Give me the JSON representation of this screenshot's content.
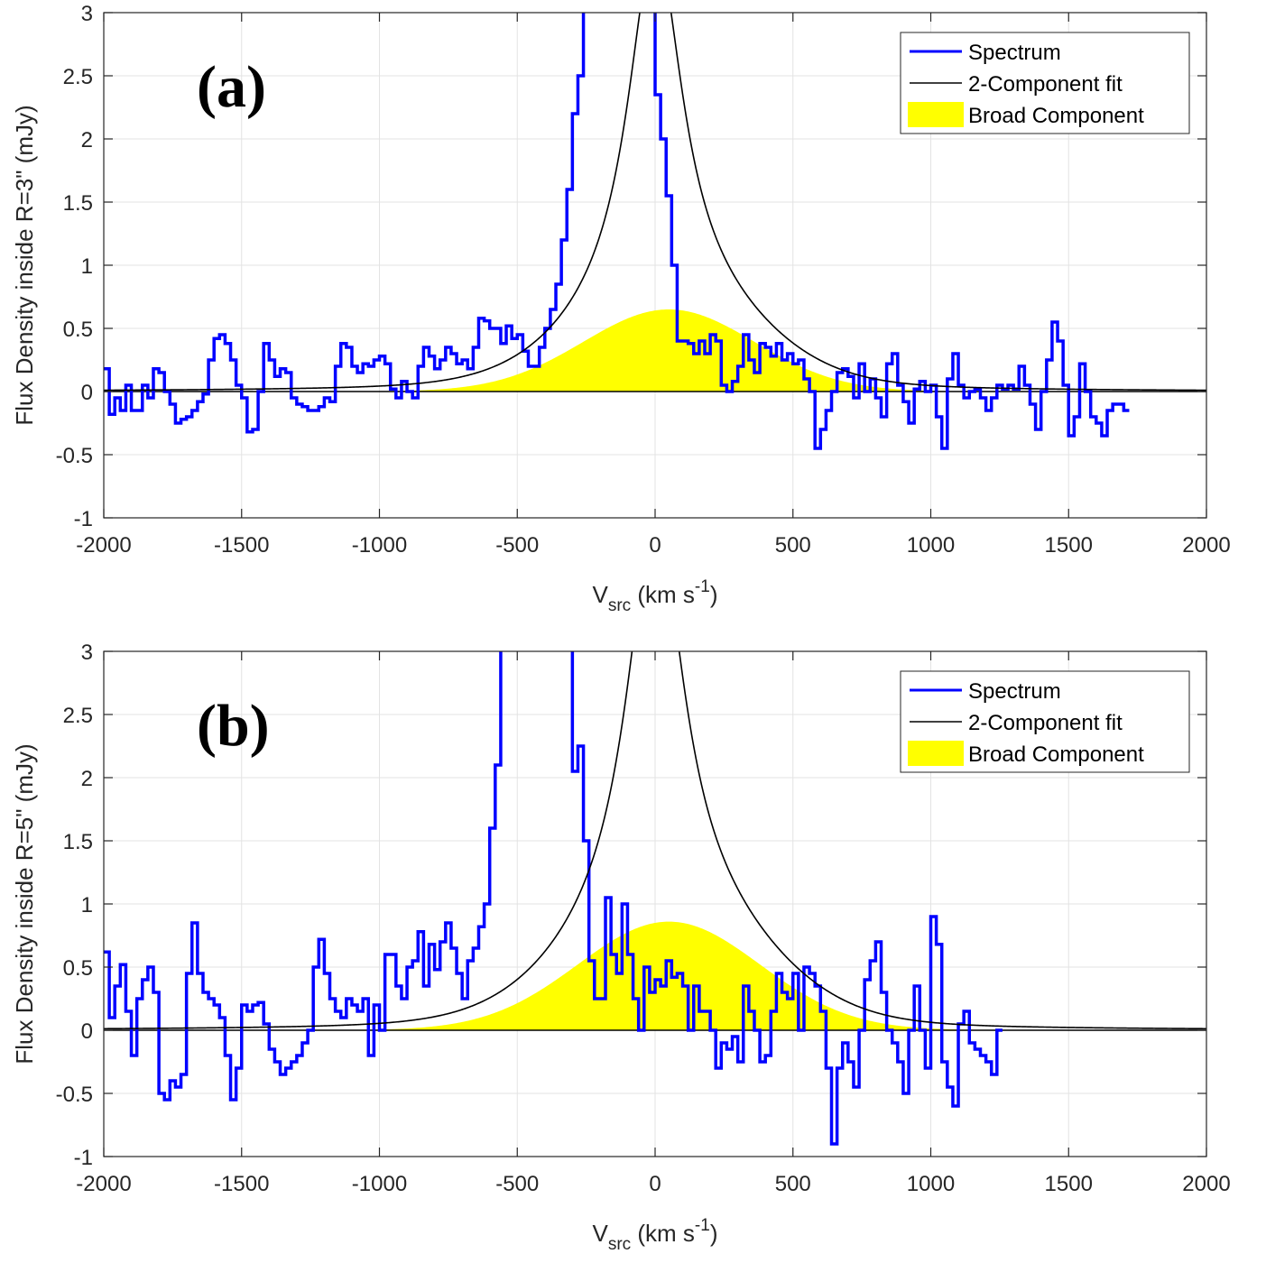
{
  "chart_data": [
    {
      "type": "line",
      "panel_label": "(a)",
      "xlabel": {
        "main": "V",
        "sub": "src",
        "rest": " (km s",
        "sup": "-1",
        "close": ")"
      },
      "ylabel": "Flux Density inside R=3\" (mJy)",
      "xlim": [
        -2000,
        2000
      ],
      "ylim": [
        -1,
        3
      ],
      "xticks": [
        -2000,
        -1500,
        -1000,
        -500,
        0,
        500,
        1000,
        1500,
        2000
      ],
      "yticks": [
        -1,
        -0.5,
        0,
        0.5,
        1,
        1.5,
        2,
        2.5,
        3
      ],
      "grid": true,
      "legend_position": "top-right",
      "legend": [
        "Spectrum",
        "2-Component fit",
        "Broad Component"
      ],
      "colors": {
        "spectrum": "#0000ff",
        "fit": "#000000",
        "broad": "#ffff00"
      },
      "broad_component": {
        "amplitude": 0.65,
        "center": 50,
        "sigma": 310
      },
      "narrow_component": {
        "amplitude": 2.9,
        "center": 0,
        "hwhm": 120
      },
      "spectrum": {
        "x_start": -2000,
        "bin_width": 20,
        "y": [
          0.18,
          -0.18,
          -0.05,
          -0.15,
          0.05,
          -0.15,
          -0.15,
          0.05,
          -0.05,
          0.18,
          0.15,
          0.0,
          -0.1,
          -0.25,
          -0.22,
          -0.2,
          -0.15,
          -0.08,
          -0.02,
          0.25,
          0.42,
          0.45,
          0.38,
          0.25,
          0.05,
          -0.05,
          -0.32,
          -0.3,
          0.0,
          0.38,
          0.25,
          0.12,
          0.18,
          0.15,
          -0.05,
          -0.1,
          -0.12,
          -0.15,
          -0.15,
          -0.12,
          -0.05,
          -0.08,
          0.2,
          0.38,
          0.35,
          0.2,
          0.15,
          0.22,
          0.2,
          0.25,
          0.28,
          0.22,
          0.02,
          -0.05,
          0.08,
          0.0,
          -0.05,
          0.2,
          0.35,
          0.28,
          0.18,
          0.25,
          0.35,
          0.3,
          0.22,
          0.25,
          0.18,
          0.35,
          0.58,
          0.56,
          0.5,
          0.5,
          0.38,
          0.52,
          0.42,
          0.45,
          0.32,
          0.2,
          0.2,
          0.35,
          0.5,
          0.65,
          0.85,
          1.2,
          1.6,
          2.2,
          2.5,
          3.5,
          3.5,
          3.5,
          3.5,
          3.5,
          3.5,
          3.5,
          3.5,
          3.5,
          3.5,
          3.5,
          3.5,
          3.5,
          2.35,
          2.0,
          1.55,
          1.0,
          0.4,
          0.4,
          0.38,
          0.3,
          0.4,
          0.3,
          0.45,
          0.4,
          0.05,
          0.0,
          0.08,
          0.2,
          0.45,
          0.25,
          0.15,
          0.38,
          0.35,
          0.28,
          0.38,
          0.25,
          0.3,
          0.22,
          0.25,
          0.1,
          0.0,
          -0.45,
          -0.3,
          -0.15,
          0.0,
          0.15,
          0.18,
          0.12,
          -0.05,
          0.22,
          0.0,
          0.1,
          -0.05,
          -0.2,
          0.22,
          0.3,
          0.05,
          -0.08,
          -0.25,
          0.02,
          0.08,
          0.0,
          0.05,
          -0.2,
          -0.45,
          0.1,
          0.3,
          0.05,
          -0.05,
          0.0,
          0.02,
          -0.05,
          -0.15,
          -0.05,
          0.05,
          0.02,
          0.05,
          0.02,
          0.2,
          0.05,
          -0.1,
          -0.3,
          0.0,
          0.25,
          0.55,
          0.4,
          0.05,
          -0.35,
          -0.2,
          0.22,
          0.0,
          -0.2,
          -0.25,
          -0.35,
          -0.15,
          -0.1,
          -0.1,
          -0.15
        ]
      }
    },
    {
      "type": "line",
      "panel_label": "(b)",
      "xlabel": {
        "main": "V",
        "sub": "src",
        "rest": " (km s",
        "sup": "-1",
        "close": ")"
      },
      "ylabel": "Flux Density inside R=5\" (mJy)",
      "xlim": [
        -2000,
        2000
      ],
      "ylim": [
        -1,
        3
      ],
      "xticks": [
        -2000,
        -1500,
        -1000,
        -500,
        0,
        500,
        1000,
        1500,
        2000
      ],
      "yticks": [
        -1,
        -0.5,
        0,
        0.5,
        1,
        1.5,
        2,
        2.5,
        3
      ],
      "grid": true,
      "legend_position": "top-right",
      "legend": [
        "Spectrum",
        "2-Component fit",
        "Broad Component"
      ],
      "colors": {
        "spectrum": "#0000ff",
        "fit": "#000000",
        "broad": "#ffff00"
      },
      "broad_component": {
        "amplitude": 0.86,
        "center": 50,
        "sigma": 330
      },
      "narrow_component": {
        "amplitude": 3.2,
        "center": 0,
        "hwhm": 125
      },
      "spectrum": {
        "x_start": -2000,
        "bin_width": 20,
        "y": [
          0.62,
          0.1,
          0.35,
          0.52,
          0.15,
          -0.2,
          0.25,
          0.4,
          0.5,
          0.3,
          -0.5,
          -0.55,
          -0.4,
          -0.45,
          -0.35,
          0.45,
          0.85,
          0.45,
          0.3,
          0.25,
          0.2,
          0.1,
          -0.2,
          -0.55,
          -0.3,
          0.2,
          0.15,
          0.2,
          0.22,
          0.05,
          -0.15,
          -0.25,
          -0.35,
          -0.3,
          -0.25,
          -0.2,
          -0.1,
          0.0,
          0.5,
          0.72,
          0.45,
          0.25,
          0.15,
          0.1,
          0.25,
          0.2,
          0.15,
          0.25,
          -0.2,
          0.2,
          0.0,
          0.6,
          0.6,
          0.35,
          0.25,
          0.5,
          0.55,
          0.78,
          0.35,
          0.68,
          0.48,
          0.7,
          0.85,
          0.65,
          0.45,
          0.25,
          0.55,
          0.65,
          0.82,
          1.0,
          1.6,
          2.1,
          3.5,
          3.5,
          3.5,
          3.5,
          3.5,
          3.5,
          3.5,
          3.5,
          3.5,
          3.5,
          3.5,
          3.5,
          3.5,
          2.05,
          2.25,
          1.5,
          0.55,
          0.25,
          0.25,
          1.05,
          0.6,
          0.45,
          1.0,
          0.6,
          0.25,
          0.0,
          0.5,
          0.3,
          0.4,
          0.35,
          0.55,
          0.42,
          0.45,
          0.35,
          0.0,
          0.35,
          0.15,
          0.15,
          0.0,
          -0.3,
          -0.1,
          -0.15,
          -0.05,
          -0.25,
          0.35,
          0.15,
          0.0,
          -0.25,
          -0.2,
          0.15,
          0.45,
          0.3,
          0.25,
          0.45,
          0.0,
          0.5,
          0.45,
          0.35,
          0.15,
          -0.3,
          -0.9,
          -0.3,
          -0.1,
          -0.25,
          -0.45,
          0.0,
          0.4,
          0.55,
          0.7,
          0.3,
          0.0,
          -0.1,
          -0.25,
          -0.5,
          0.0,
          0.35,
          0.0,
          -0.3,
          0.9,
          0.68,
          -0.25,
          -0.45,
          -0.6,
          0.05,
          0.15,
          -0.1,
          -0.15,
          -0.2,
          -0.25,
          -0.35,
          0.0
        ]
      }
    }
  ]
}
